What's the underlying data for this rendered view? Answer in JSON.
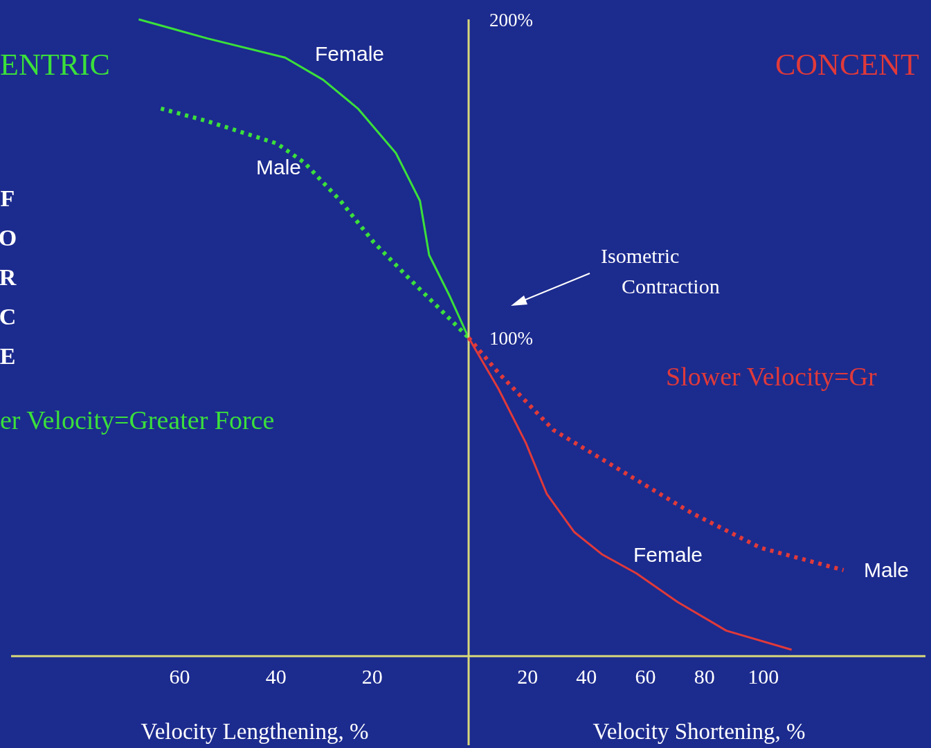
{
  "chart_data": [
    {
      "type": "line",
      "title": "ENTRIC",
      "ylabel": "FORCE",
      "xlabel": "Velocity Lengthening, %",
      "xlim": [
        95,
        0
      ],
      "xticks": [
        60,
        40,
        20
      ],
      "ylim": [
        -28,
        200
      ],
      "tick_labels": "x",
      "annotations": [
        "er Velocity=Greater Force"
      ],
      "series": [
        {
          "name": "Female",
          "color": "#3be03b",
          "line_style": "solid",
          "x": [
            68.5,
            54.2,
            38.1,
            30.2,
            23,
            15.1,
            10.1,
            8.2,
            3.9,
            0
          ],
          "values": [
            200,
            194,
            188,
            181,
            172,
            158,
            143,
            126,
            113,
            100
          ]
        },
        {
          "name": "Male",
          "color": "#3be03b",
          "line_style": "dotted",
          "x": [
            63.9,
            54.2,
            39.8,
            34.1,
            26.6,
            19.7,
            12.6,
            5.3,
            0
          ],
          "values": [
            172,
            168,
            161,
            155,
            143,
            130,
            119,
            108,
            100
          ]
        }
      ]
    },
    {
      "type": "line",
      "title": "CONCENT",
      "xlabel": "Velocity Shortening, %",
      "xlim": [
        0,
        155
      ],
      "xticks": [
        20,
        40,
        60,
        80,
        100
      ],
      "ylim": [
        -28,
        200
      ],
      "yticks": [
        {
          "value": 100,
          "label": "100%"
        },
        {
          "value": 200,
          "label": "200%"
        }
      ],
      "annotations": [
        "Isometric Contraction",
        "Slower Velocity=Gr"
      ],
      "series": [
        {
          "name": "Female",
          "color": "#e03a3a",
          "line_style": "solid",
          "x": [
            0,
            10.1,
            19.4,
            26.5,
            35.8,
            45.2,
            56.9,
            70.9,
            87.4,
            109.6
          ],
          "values": [
            100,
            84,
            67,
            51,
            39,
            32,
            26,
            17,
            8,
            2
          ]
        },
        {
          "name": "Male",
          "color": "#e03a3a",
          "line_style": "dotted",
          "x": [
            0,
            10.1,
            28.8,
            52.2,
            75.6,
            99.1,
            127.2
          ],
          "values": [
            100,
            89,
            71,
            58,
            45,
            34,
            27
          ]
        }
      ]
    }
  ]
}
